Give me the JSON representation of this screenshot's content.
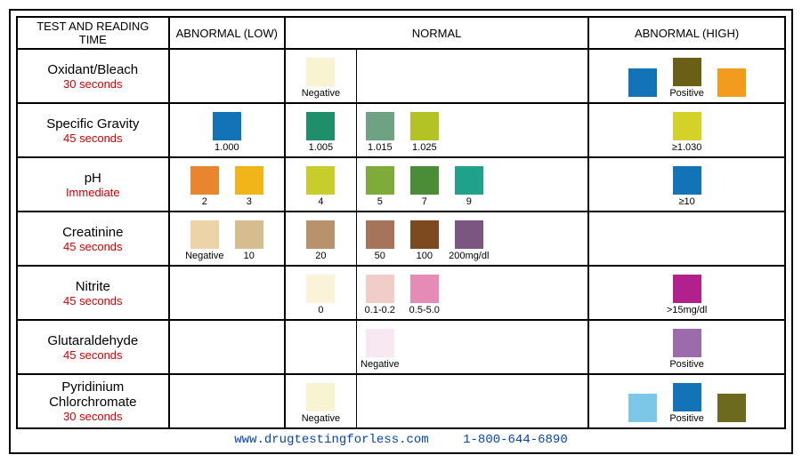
{
  "headers": {
    "test": "TEST AND READING TIME",
    "low": "ABNORMAL (LOW)",
    "normal": "NORMAL",
    "high": "ABNORMAL (HIGH)"
  },
  "footer": {
    "url_text": "www.drugtestingforless.com",
    "url_href": "http://www.drugtestingforless.com",
    "phone": "1-800-644-6890"
  },
  "rows": [
    {
      "name": "Oxidant/Bleach",
      "time": "30 seconds",
      "low": [],
      "normal_a": [
        {
          "color": "#f8f3d1",
          "label": "Negative"
        }
      ],
      "normal_b": [],
      "high": [
        {
          "color": "#1273b7",
          "label": ""
        },
        {
          "color": "#6b5f17",
          "label": "Positive"
        },
        {
          "color": "#f29b1d",
          "label": ""
        }
      ],
      "high_group_label": ""
    },
    {
      "name": "Specific Gravity",
      "time": "45 seconds",
      "low": [
        {
          "color": "#1273b7",
          "label": "1.000"
        }
      ],
      "normal_a": [
        {
          "color": "#1f8f6b",
          "label": "1.005"
        }
      ],
      "normal_b": [
        {
          "color": "#6fa183",
          "label": "1.015"
        },
        {
          "color": "#b3c326",
          "label": "1.025"
        }
      ],
      "high": [
        {
          "color": "#d2d228",
          "label": "≥1.030"
        }
      ]
    },
    {
      "name": "pH",
      "time": "Immediate",
      "low": [
        {
          "color": "#e8852e",
          "label": "2"
        },
        {
          "color": "#f2b519",
          "label": "3"
        }
      ],
      "normal_a": [
        {
          "color": "#c8cd2e",
          "label": "4"
        }
      ],
      "normal_b": [
        {
          "color": "#7eab3a",
          "label": "5"
        },
        {
          "color": "#4b8c36",
          "label": "7"
        },
        {
          "color": "#1fa18b",
          "label": "9"
        }
      ],
      "high": [
        {
          "color": "#1273b7",
          "label": "≥10"
        }
      ]
    },
    {
      "name": "Creatinine",
      "time": "45 seconds",
      "low": [
        {
          "color": "#ecd4a8",
          "label": "Negative"
        },
        {
          "color": "#d6bd8d",
          "label": "10"
        }
      ],
      "normal_a": [
        {
          "color": "#b8926a",
          "label": "20"
        }
      ],
      "normal_b": [
        {
          "color": "#a5745b",
          "label": "50"
        },
        {
          "color": "#7d4a20",
          "label": "100"
        },
        {
          "color": "#7b5680",
          "label": "200mg/dl"
        }
      ],
      "high": []
    },
    {
      "name": "Nitrite",
      "time": "45 seconds",
      "low": [],
      "normal_a": [
        {
          "color": "#faf2d9",
          "label": "0"
        }
      ],
      "normal_b": [
        {
          "color": "#f1cdc8",
          "label": "0.1-0.2"
        },
        {
          "color": "#e58bb5",
          "label": "0.5-5.0"
        }
      ],
      "high": [
        {
          "color": "#b1208c",
          "label": ">15mg/dl"
        }
      ]
    },
    {
      "name": "Glutaraldehyde",
      "time": "45 seconds",
      "low": [],
      "normal_a": [],
      "normal_b": [
        {
          "color": "#f8e8f2",
          "label": "Negative"
        }
      ],
      "high": [
        {
          "color": "#9b6bab",
          "label": "Positive"
        }
      ]
    },
    {
      "name": "Pyridinium Chlorchromate",
      "time": "30 seconds",
      "low": [],
      "normal_a": [
        {
          "color": "#f8f3d1",
          "label": "Negative"
        }
      ],
      "normal_b": [],
      "high": [
        {
          "color": "#7cc7e8",
          "label": ""
        },
        {
          "color": "#1273b7",
          "label": "Positive"
        },
        {
          "color": "#6b6a1e",
          "label": ""
        }
      ]
    }
  ]
}
